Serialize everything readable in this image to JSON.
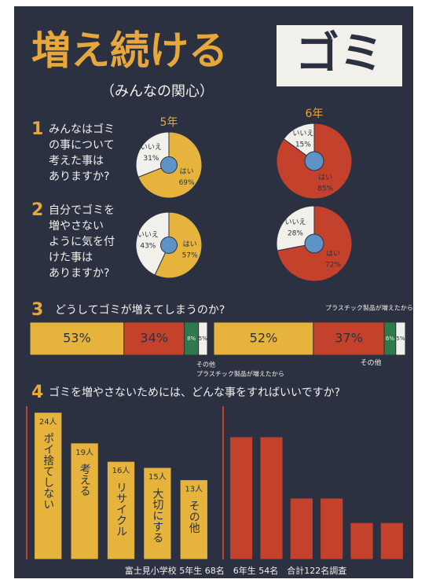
{
  "title_part1": "増え続ける",
  "title_part2": "ゴミ",
  "subtitle": "（みんなの関心）",
  "questions": [
    {
      "number": "1",
      "lines": [
        "みんなはゴミ",
        "の事について",
        "考えた事は",
        "ありますか?"
      ]
    },
    {
      "number": "2",
      "lines": [
        "自分でゴミを",
        "増やさない",
        "ように気を付",
        "けた事は",
        "ありますか?"
      ]
    },
    {
      "number": "3",
      "lines": [
        "どうしてゴミが増えてしまうのか?"
      ]
    },
    {
      "number": "4",
      "lines": [
        "ゴミを増やさないためには、どんな事をすればいいですか?"
      ]
    }
  ],
  "annotations": [
    "プラスチック製品が増えたから",
    "その他",
    "プラスチック製品が増えたから",
    "その他"
  ],
  "footer": "富士見小学校 5年生 68名　6年生 54名　合計122名調査",
  "chart_data": [
    {
      "type": "pie",
      "title": "5年",
      "categories": [
        "はい",
        "いいえ"
      ],
      "values": [
        69,
        31
      ],
      "value_labels": [
        "69%",
        "31%"
      ],
      "colors": [
        "#e6b43c",
        "#f2f0ea"
      ]
    },
    {
      "type": "pie",
      "title": "6年",
      "categories": [
        "はい",
        "いいえ"
      ],
      "values": [
        85,
        15
      ],
      "value_labels": [
        "85%",
        "15%"
      ],
      "colors": [
        "#c4422b",
        "#f2f0ea"
      ]
    },
    {
      "type": "pie",
      "categories": [
        "はい",
        "いいえ"
      ],
      "values": [
        57,
        43
      ],
      "value_labels": [
        "57%",
        "43%"
      ],
      "colors": [
        "#e6b43c",
        "#f2f0ea"
      ]
    },
    {
      "type": "pie",
      "categories": [
        "はい",
        "いいえ"
      ],
      "values": [
        72,
        28
      ],
      "value_labels": [
        "72%",
        "28%"
      ],
      "colors": [
        "#c4422b",
        "#f2f0ea"
      ]
    },
    {
      "type": "stacked",
      "values": [
        53,
        34,
        8,
        5
      ],
      "value_labels": [
        "53%",
        "34%",
        "8%",
        "5%"
      ],
      "colors": [
        "#e6b43c",
        "#c4422b",
        "#2f7a4a",
        "#f2f0ea"
      ]
    },
    {
      "type": "stacked",
      "values": [
        52,
        37,
        6,
        5
      ],
      "value_labels": [
        "52%",
        "37%",
        "6%",
        "5%"
      ],
      "colors": [
        "#e6b43c",
        "#c4422b",
        "#2f7a4a",
        "#f2f0ea"
      ]
    },
    {
      "type": "bar",
      "categories": [
        "ポイ捨てしない",
        "考える",
        "リサイクル",
        "大切にする",
        "その他"
      ],
      "values": [
        24,
        19,
        16,
        15,
        13
      ],
      "value_labels": [
        "24人",
        "19人",
        "16人",
        "15人",
        "13人"
      ],
      "color": "#e6b43c",
      "ylim": [
        0,
        25
      ]
    },
    {
      "type": "bar",
      "categories": [
        null,
        null,
        null,
        null,
        null,
        null
      ],
      "values": [
        20,
        20,
        10,
        10,
        6,
        6
      ],
      "color": "#c4422b",
      "ylim": [
        0,
        25
      ]
    }
  ]
}
